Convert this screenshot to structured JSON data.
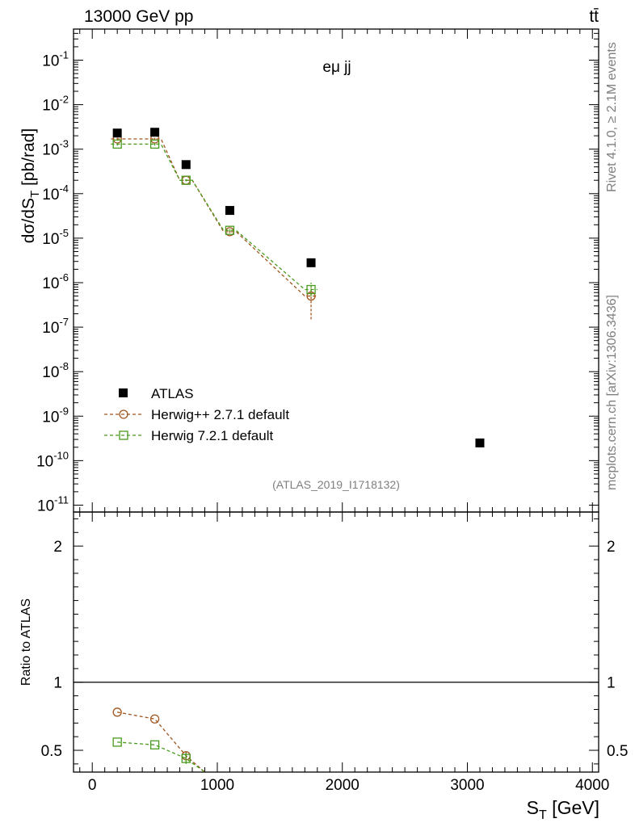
{
  "header": {
    "energy_label": "13000 GeV pp",
    "process_label": "tt̄",
    "channel_label": "eμ jj",
    "analysis_tag": "(ATLAS_2019_I1718132)",
    "rivet_label": "Rivet 4.1.0, ≥ 2.1M events",
    "mcplots_label": "mcplots.cern.ch [arXiv:1306.3436]"
  },
  "legend": {
    "atlas": "ATLAS",
    "herwigpp": "Herwig++ 2.7.1 default",
    "herwig7": "Herwig 7.2.1 default"
  },
  "colors": {
    "atlas": "#000000",
    "herwigpp": "#a0561e",
    "herwig7": "#4a9a1e",
    "side_text": "#7f7f7f"
  },
  "chart_data": [
    {
      "type": "scatter",
      "title": "",
      "xlabel": "S_T [GeV]",
      "ylabel": "dσ/dS_T [pb/rad]",
      "yscale": "log",
      "xlim": [
        -150,
        4050
      ],
      "ylim": [
        7e-12,
        0.5
      ],
      "x_ticks": [
        0,
        1000,
        2000,
        3000,
        4000
      ],
      "x_tick_labels": [
        "0",
        "1000",
        "2000",
        "3000",
        "4000"
      ],
      "y_tick_labels": [
        "10^{-11}",
        "10^{-10}",
        "10^{-9}",
        "10^{-8}",
        "10^{-7}",
        "10^{-6}",
        "10^{-5}",
        "10^{-4}",
        "10^{-3}",
        "10^{-2}",
        "10^{-1}"
      ],
      "series": [
        {
          "name": "ATLAS",
          "x": [
            200,
            500,
            750,
            1100,
            1750,
            3100
          ],
          "y": [
            0.0023,
            0.0024,
            0.00045,
            4.2e-05,
            2.8e-06,
            2.5e-10
          ]
        },
        {
          "name": "Herwig++ 2.7.1 default",
          "x": [
            200,
            500,
            750,
            1100,
            1750
          ],
          "x_edges": [
            [
              150,
              250
            ],
            [
              450,
              550
            ],
            [
              700,
              800
            ],
            [
              1050,
              1150
            ],
            [
              1700,
              1800
            ]
          ],
          "y": [
            0.0017,
            0.0017,
            0.0002,
            1.4e-05,
            5e-07
          ],
          "y_err_low": [
            0.0001,
            0.0001,
            1e-05,
            1e-06,
            3.5e-07
          ],
          "y_err_high": [
            0.0001,
            0.0001,
            1e-05,
            1e-06,
            3e-07
          ]
        },
        {
          "name": "Herwig 7.2.1 default",
          "x": [
            200,
            500,
            750,
            1100,
            1750
          ],
          "x_edges": [
            [
              150,
              250
            ],
            [
              450,
              550
            ],
            [
              700,
              800
            ],
            [
              1050,
              1150
            ],
            [
              1700,
              1800
            ]
          ],
          "y": [
            0.0013,
            0.0013,
            0.0002,
            1.5e-05,
            7e-07
          ],
          "y_err_low": [
            0.0001,
            0.0001,
            1e-05,
            1e-06,
            2e-07
          ],
          "y_err_high": [
            0.0001,
            0.0001,
            1e-05,
            1e-06,
            3e-07
          ]
        }
      ]
    },
    {
      "type": "line",
      "title": "",
      "xlabel": "S_T [GeV]",
      "ylabel": "Ratio to ATLAS",
      "xlim": [
        -150,
        4050
      ],
      "ylim": [
        0.34,
        2.25
      ],
      "y_ticks": [
        0.5,
        1,
        2
      ],
      "y_tick_labels": [
        "0.5",
        "1",
        "2"
      ],
      "reference_line": 1,
      "series": [
        {
          "name": "Herwig++ 2.7.1 default",
          "x": [
            200,
            500,
            750,
            900
          ],
          "y": [
            0.78,
            0.73,
            0.46,
            0.34
          ],
          "y_err": [
            0,
            0,
            0.03,
            0
          ]
        },
        {
          "name": "Herwig 7.2.1 default",
          "x": [
            200,
            500,
            750,
            900
          ],
          "y": [
            0.56,
            0.54,
            0.44,
            0.34
          ],
          "y_err": [
            0,
            0,
            0.04,
            0
          ]
        }
      ]
    }
  ]
}
